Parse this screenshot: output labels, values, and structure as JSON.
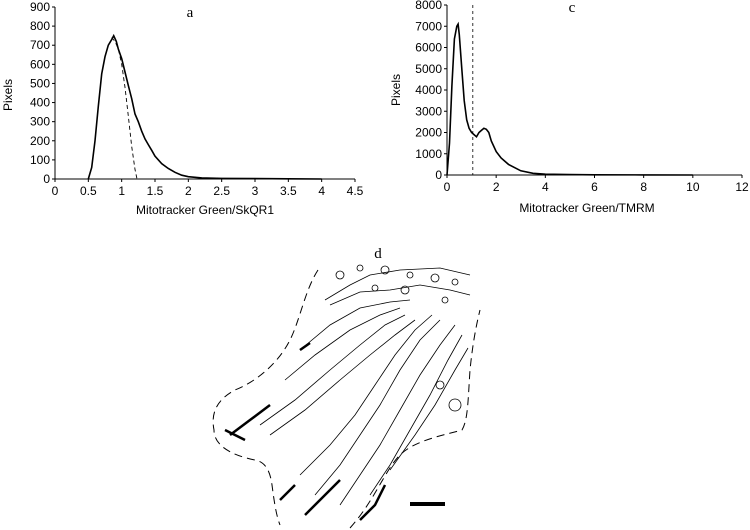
{
  "panels": {
    "a": {
      "label": "a"
    },
    "c": {
      "label": "c"
    },
    "d": {
      "label": "d"
    }
  },
  "chart_data": [
    {
      "id": "a",
      "type": "line",
      "title": "a",
      "xlabel": "Mitotracker Green/SkQR1",
      "ylabel": "Pixels",
      "xlim": [
        0,
        4.5
      ],
      "ylim": [
        0,
        900
      ],
      "xticks": [
        "0",
        "0.5",
        "1",
        "1.5",
        "2",
        "2.5",
        "3",
        "3.5",
        "4",
        "4.5"
      ],
      "yticks": [
        "0",
        "100",
        "200",
        "300",
        "400",
        "500",
        "600",
        "700",
        "800",
        "900"
      ],
      "grid": false,
      "series": [
        {
          "name": "histogram",
          "style": "solid",
          "x": [
            0.5,
            0.55,
            0.6,
            0.65,
            0.7,
            0.75,
            0.8,
            0.85,
            0.88,
            0.92,
            0.95,
            1.0,
            1.05,
            1.1,
            1.15,
            1.2,
            1.25,
            1.3,
            1.35,
            1.4,
            1.45,
            1.5,
            1.6,
            1.7,
            1.8,
            1.9,
            2.0,
            2.2,
            2.5,
            3.0,
            3.5,
            4.0
          ],
          "values": [
            0,
            60,
            200,
            380,
            550,
            640,
            700,
            730,
            750,
            720,
            680,
            630,
            560,
            490,
            420,
            340,
            300,
            250,
            210,
            180,
            150,
            120,
            80,
            55,
            35,
            20,
            12,
            6,
            3,
            2,
            1,
            0
          ]
        },
        {
          "name": "fitted-gaussian",
          "style": "dashed",
          "x": [
            0.85,
            0.9,
            0.95,
            1.0,
            1.05,
            1.1,
            1.15,
            1.2,
            1.23
          ],
          "values": [
            740,
            720,
            680,
            600,
            480,
            330,
            170,
            50,
            0
          ]
        }
      ]
    },
    {
      "id": "c",
      "type": "line",
      "title": "c",
      "xlabel": "Mitotracker Green/TMRM",
      "ylabel": "Pixels",
      "xlim": [
        0,
        12
      ],
      "ylim": [
        0,
        8000
      ],
      "xticks": [
        "0",
        "2",
        "4",
        "6",
        "8",
        "10",
        "12"
      ],
      "yticks": [
        "0",
        "1000",
        "2000",
        "3000",
        "4000",
        "5000",
        "6000",
        "7000",
        "8000"
      ],
      "grid": false,
      "threshold_line_x": 1.05,
      "series": [
        {
          "name": "histogram",
          "style": "solid",
          "x": [
            0,
            0.1,
            0.2,
            0.3,
            0.4,
            0.45,
            0.5,
            0.6,
            0.7,
            0.8,
            0.9,
            1.0,
            1.1,
            1.2,
            1.3,
            1.4,
            1.5,
            1.6,
            1.7,
            1.8,
            2.0,
            2.2,
            2.5,
            3.0,
            3.5,
            4.0,
            5.0,
            6.0,
            8.0,
            10.0
          ],
          "values": [
            0,
            1500,
            4200,
            6400,
            7000,
            7100,
            6600,
            5000,
            3500,
            2600,
            2200,
            2000,
            1900,
            1800,
            2000,
            2100,
            2200,
            2150,
            2000,
            1600,
            1100,
            800,
            500,
            200,
            80,
            40,
            20,
            10,
            5,
            0
          ]
        }
      ]
    }
  ],
  "figure_d": {
    "label": "d",
    "description": "Outlined cell drawing with dashed boundary and mitochondria contours",
    "scale_bar": true
  }
}
